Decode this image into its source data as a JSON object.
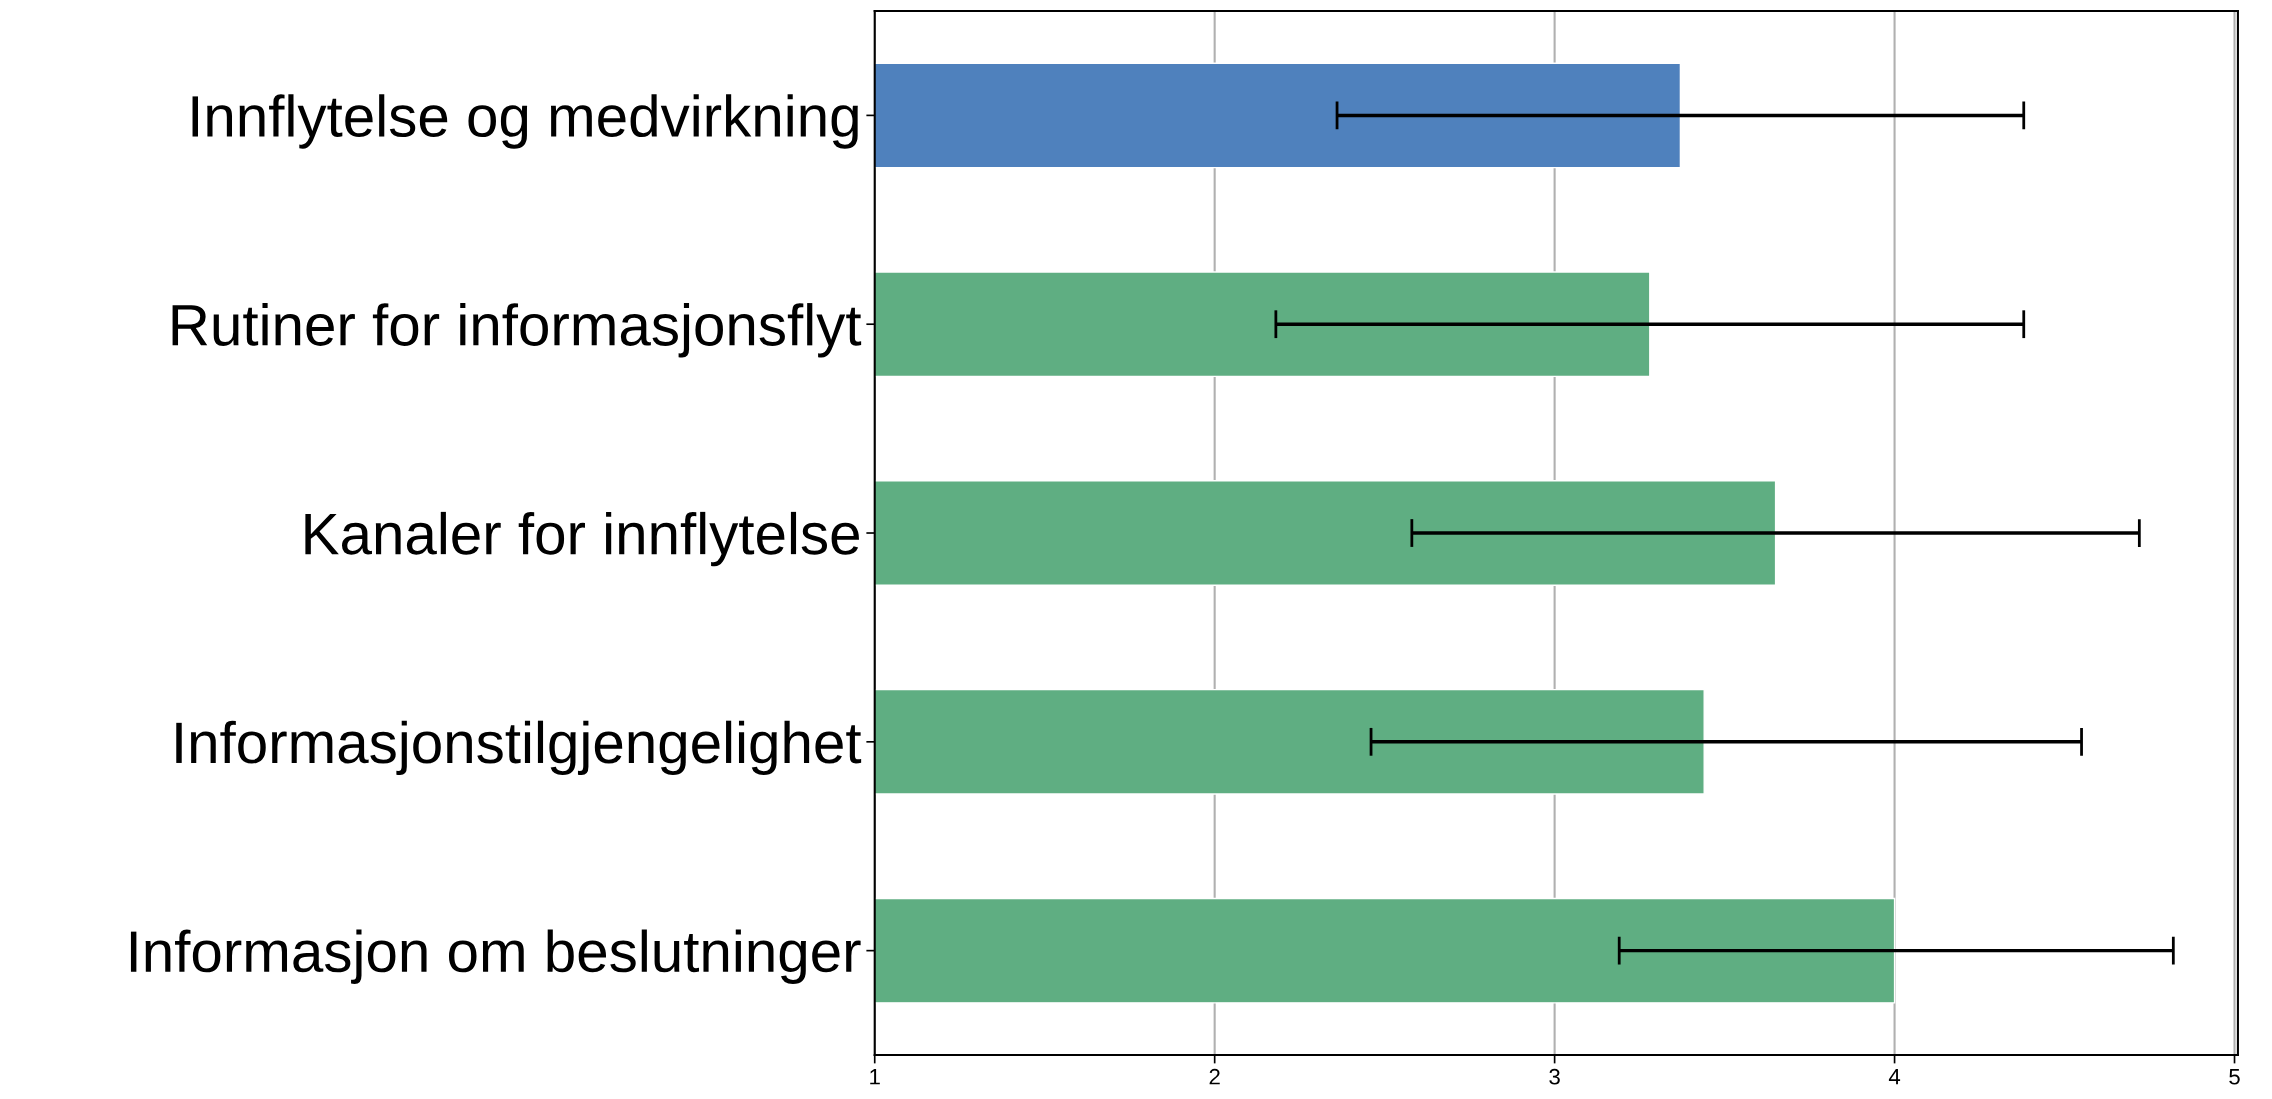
{
  "chart_data": {
    "type": "bar",
    "orientation": "horizontal",
    "categories": [
      "Innflytelse og medvirkning",
      "Rutiner for informasjonsflyt",
      "Kanaler for innflytelse",
      "Informasjonstilgjengelighet",
      "Informasjon om beslutninger"
    ],
    "values": [
      3.37,
      3.28,
      3.65,
      3.44,
      4.0
    ],
    "errors": [
      [
        2.36,
        4.38
      ],
      [
        2.18,
        4.38
      ],
      [
        2.58,
        4.72
      ],
      [
        2.46,
        4.55
      ],
      [
        3.19,
        4.82
      ]
    ],
    "colors": [
      "#4f81bd",
      "#5fae82",
      "#5fae82",
      "#5fae82",
      "#5fae82"
    ],
    "xlim": [
      1,
      5.01
    ],
    "xticks": [
      1,
      2,
      3,
      4,
      5
    ],
    "grid": "x"
  }
}
